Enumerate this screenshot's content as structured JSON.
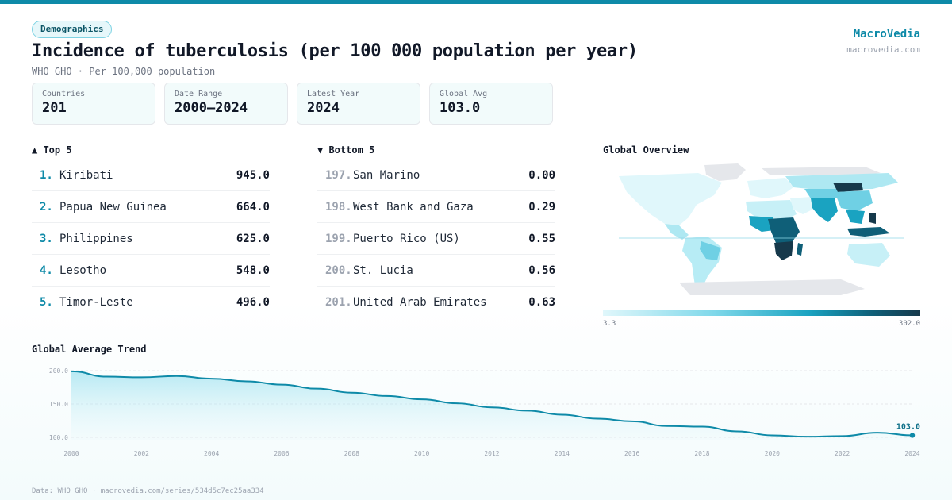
{
  "tag": "Demographics",
  "title": "Incidence of tuberculosis (per 100 000 population per year)",
  "subtitle": "WHO GHO · Per 100,000 population",
  "brand": {
    "name": "MacroVedia",
    "url": "macrovedia.com"
  },
  "stats": [
    {
      "label": "Countries",
      "value": "201"
    },
    {
      "label": "Date Range",
      "value": "2000–2024"
    },
    {
      "label": "Latest Year",
      "value": "2024"
    },
    {
      "label": "Global Avg",
      "value": "103.0"
    }
  ],
  "top5": {
    "heading": "▲ Top 5",
    "items": [
      {
        "rank": "1.",
        "name": "Kiribati",
        "value": "945.0"
      },
      {
        "rank": "2.",
        "name": "Papua New Guinea",
        "value": "664.0"
      },
      {
        "rank": "3.",
        "name": "Philippines",
        "value": "625.0"
      },
      {
        "rank": "4.",
        "name": "Lesotho",
        "value": "548.0"
      },
      {
        "rank": "5.",
        "name": "Timor-Leste",
        "value": "496.0"
      }
    ]
  },
  "bottom5": {
    "heading": "▼ Bottom 5",
    "items": [
      {
        "rank": "197.",
        "name": "San Marino",
        "value": "0.00"
      },
      {
        "rank": "198.",
        "name": "West Bank and Gaza",
        "value": "0.29"
      },
      {
        "rank": "199.",
        "name": "Puerto Rico (US)",
        "value": "0.55"
      },
      {
        "rank": "200.",
        "name": "St. Lucia",
        "value": "0.56"
      },
      {
        "rank": "201.",
        "name": "United Arab Emirates",
        "value": "0.63"
      }
    ]
  },
  "map": {
    "heading": "Global Overview",
    "legend_min": "3.3",
    "legend_max": "302.0",
    "colors": {
      "low": "#e0f7fb",
      "mid": "#1aa3c1",
      "high": "#16394b",
      "nodata": "#e5e7eb"
    }
  },
  "trend_heading": "Global Average Trend",
  "footer": "Data: WHO GHO · macrovedia.com/series/534d5c7ec25aa334",
  "accent_color": "#0e8aa8",
  "chart_data": {
    "type": "area",
    "x": [
      2000,
      2001,
      2002,
      2003,
      2004,
      2005,
      2006,
      2007,
      2008,
      2009,
      2010,
      2011,
      2012,
      2013,
      2014,
      2015,
      2016,
      2017,
      2018,
      2019,
      2020,
      2021,
      2022,
      2023,
      2024
    ],
    "values": [
      199,
      191,
      190,
      192,
      188,
      184,
      179,
      173,
      167,
      162,
      157,
      151,
      145,
      140,
      134,
      128,
      124,
      117,
      116,
      109,
      103,
      101,
      102,
      107,
      103
    ],
    "yticks": [
      "100.0",
      "150.0",
      "200.0"
    ],
    "xticks": [
      "2000",
      "2002",
      "2004",
      "2006",
      "2008",
      "2010",
      "2012",
      "2014",
      "2016",
      "2018",
      "2020",
      "2022",
      "2024"
    ],
    "ylim": [
      100,
      200
    ],
    "end_label": "103.0",
    "grid": true
  }
}
